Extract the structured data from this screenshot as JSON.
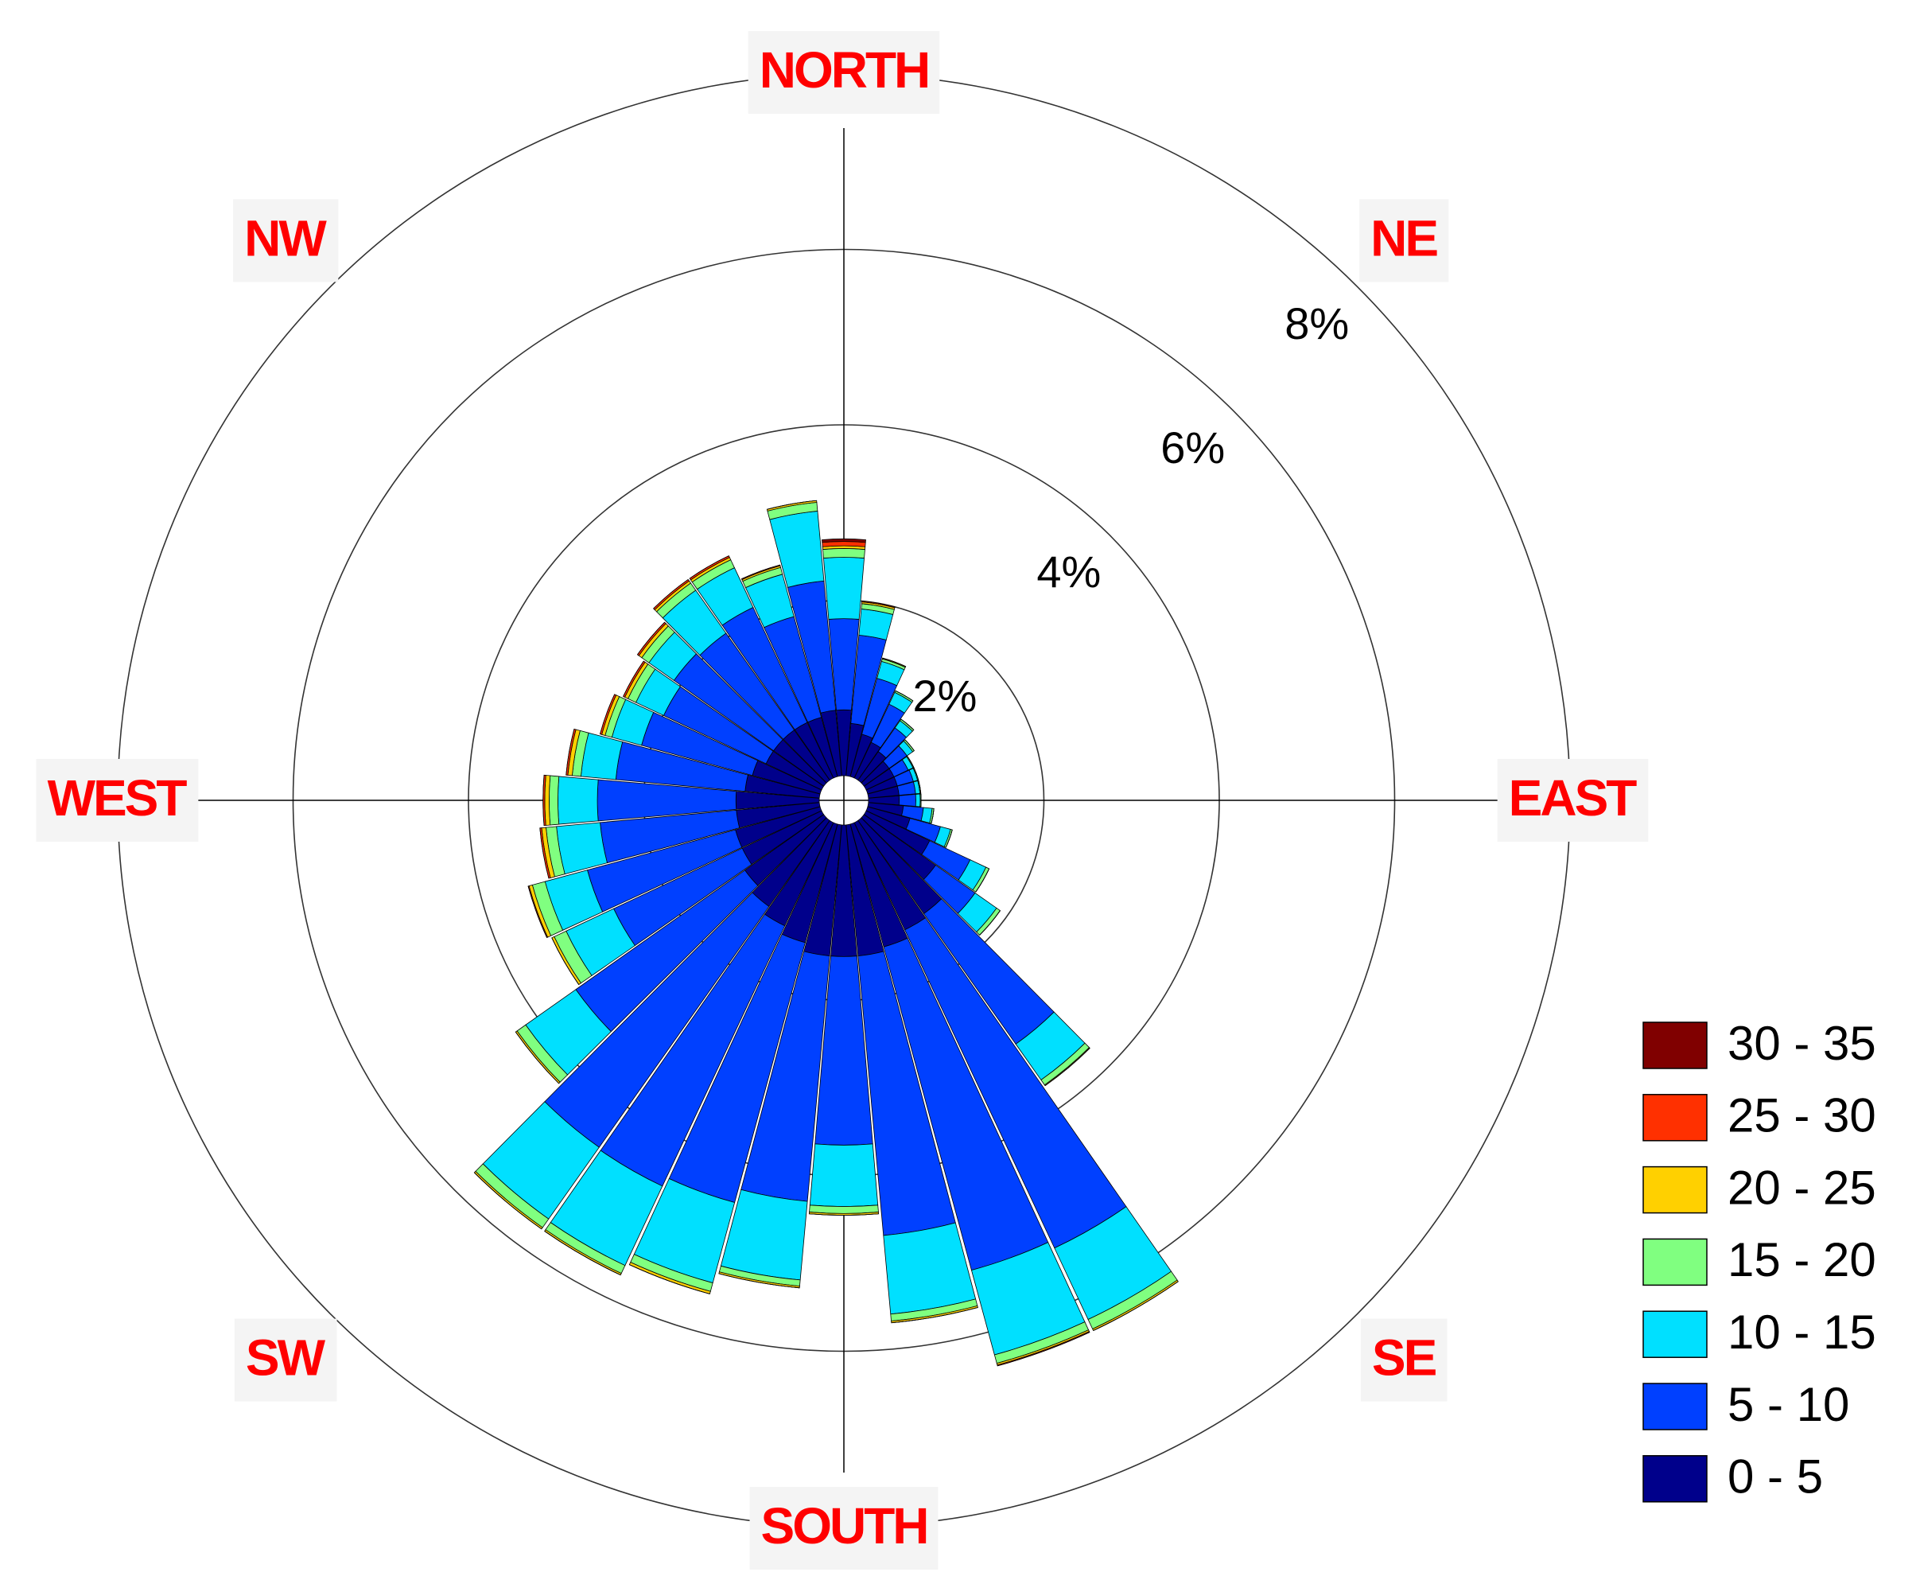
{
  "chart_data": {
    "type": "windrose",
    "x": [
      0,
      10,
      20,
      30,
      40,
      50,
      60,
      70,
      80,
      90,
      100,
      110,
      120,
      130,
      140,
      150,
      160,
      170,
      180,
      190,
      200,
      210,
      220,
      230,
      240,
      250,
      260,
      270,
      280,
      290,
      300,
      310,
      320,
      330,
      340,
      350
    ],
    "xticks": [
      {
        "value": 0,
        "label": "NORTH"
      },
      {
        "value": 45,
        "label": "NE"
      },
      {
        "value": 90,
        "label": "EAST"
      },
      {
        "value": 135,
        "label": "SE"
      },
      {
        "value": 180,
        "label": "SOUTH"
      },
      {
        "value": 225,
        "label": "SW"
      },
      {
        "value": 270,
        "label": "WEST"
      },
      {
        "value": 315,
        "label": "NW"
      }
    ],
    "rlim": [
      0,
      8
    ],
    "rticks": [
      {
        "value": 2,
        "label": "2%"
      },
      {
        "value": 4,
        "label": "4%"
      },
      {
        "value": 6,
        "label": "6%"
      },
      {
        "value": 8,
        "label": "8%"
      }
    ],
    "series": [
      {
        "name": "0 - 5",
        "color": "#00008b",
        "values": [
          0.75,
          0.6,
          0.5,
          0.45,
          0.4,
          0.35,
          0.35,
          0.35,
          0.35,
          0.35,
          0.4,
          0.5,
          0.8,
          1.0,
          1.3,
          1.35,
          1.45,
          1.5,
          1.5,
          1.5,
          1.4,
          1.3,
          1.2,
          1.1,
          1.0,
          1.0,
          0.95,
          0.95,
          0.85,
          0.8,
          0.7,
          0.7,
          0.7,
          0.7,
          0.7,
          0.75
        ]
      },
      {
        "name": "5 - 10",
        "color": "#0040ff",
        "values": [
          1.04,
          1.01,
          0.66,
          0.48,
          0.33,
          0.25,
          0.18,
          0.19,
          0.19,
          0.19,
          0.23,
          0.36,
          0.51,
          0.55,
          1.82,
          4.01,
          3.82,
          3.2,
          2.15,
          2.81,
          3.07,
          3.28,
          3.36,
          2.36,
          1.62,
          1.75,
          1.56,
          1.58,
          1.48,
          1.31,
          1.29,
          1.39,
          1.35,
          1.45,
          1.19,
          1.48
        ]
      },
      {
        "name": "10 - 15",
        "color": "#00e0ff",
        "values": [
          0.7,
          0.3,
          0.2,
          0.15,
          0.1,
          0.08,
          0.06,
          0.05,
          0.05,
          0.05,
          0.1,
          0.12,
          0.2,
          0.3,
          0.5,
          0.9,
          1.0,
          0.9,
          0.7,
          0.9,
          0.95,
          1.0,
          1.0,
          0.7,
          0.6,
          0.5,
          0.5,
          0.45,
          0.4,
          0.35,
          0.35,
          0.35,
          0.6,
          0.5,
          0.5,
          0.8
        ]
      },
      {
        "name": "15 - 20",
        "color": "#80ff80",
        "values": [
          0.1,
          0.06,
          0.03,
          0.02,
          0.02,
          0.02,
          0.01,
          0.01,
          0.01,
          0.01,
          0.02,
          0.02,
          0.04,
          0.05,
          0.07,
          0.12,
          0.1,
          0.08,
          0.08,
          0.07,
          0.1,
          0.1,
          0.12,
          0.12,
          0.15,
          0.15,
          0.12,
          0.1,
          0.1,
          0.08,
          0.1,
          0.1,
          0.1,
          0.1,
          0.08,
          0.1
        ]
      },
      {
        "name": "20 - 25",
        "color": "#ffd000",
        "values": [
          0.03,
          0.02,
          0.01,
          0,
          0,
          0,
          0,
          0,
          0,
          0,
          0,
          0,
          0,
          0,
          0.01,
          0.02,
          0.02,
          0.02,
          0.02,
          0.02,
          0.03,
          0.02,
          0.02,
          0.02,
          0.03,
          0.04,
          0.05,
          0.05,
          0.05,
          0.04,
          0.04,
          0.04,
          0.03,
          0.03,
          0.02,
          0.02
        ]
      },
      {
        "name": "25 - 30",
        "color": "#ff3000",
        "values": [
          0.05,
          0.01,
          0,
          0,
          0,
          0,
          0,
          0,
          0,
          0,
          0,
          0,
          0,
          0,
          0,
          0,
          0.01,
          0,
          0,
          0,
          0,
          0,
          0,
          0,
          0,
          0.01,
          0.02,
          0.02,
          0.02,
          0.02,
          0.02,
          0.02,
          0.02,
          0.02,
          0.01,
          0
        ]
      },
      {
        "name": "30 - 35",
        "color": "#800000",
        "values": [
          0.03,
          0,
          0,
          0,
          0,
          0,
          0,
          0,
          0,
          0,
          0,
          0,
          0,
          0,
          0,
          0,
          0,
          0,
          0,
          0,
          0,
          0,
          0,
          0,
          0,
          0,
          0,
          0,
          0,
          0,
          0,
          0,
          0,
          0,
          0,
          0
        ]
      }
    ]
  }
}
